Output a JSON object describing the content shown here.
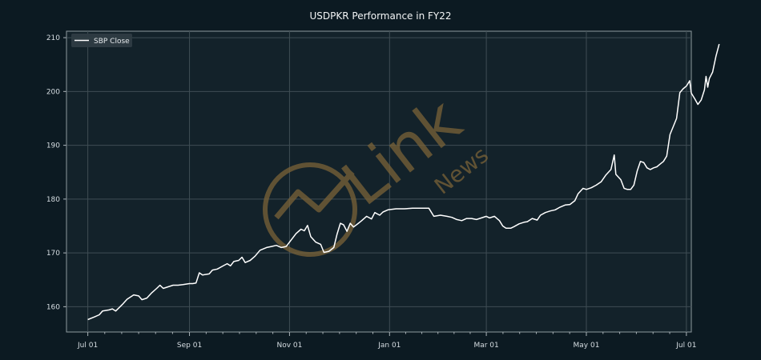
{
  "chart_data": {
    "type": "line",
    "title": "USDPKR Performance in FY22",
    "xlabel": "",
    "ylabel": "",
    "x_ticks": [
      "Jul 01",
      "Sep 01",
      "Nov 01",
      "Jan 01",
      "Mar 01",
      "May 01",
      "Jul 01"
    ],
    "x_tick_dates": [
      "2021-07-01",
      "2021-09-01",
      "2021-11-01",
      "2022-01-01",
      "2022-03-01",
      "2022-05-01",
      "2022-07-01"
    ],
    "y_ticks": [
      160,
      170,
      180,
      190,
      200,
      210
    ],
    "xlim": [
      "2021-06-18",
      "2022-07-04"
    ],
    "ylim": [
      155.3,
      211.2
    ],
    "grid": true,
    "legend_position": "top-left",
    "series": [
      {
        "name": "SBP Close",
        "color": "#ffffff",
        "points": [
          [
            "2021-07-01",
            157.6
          ],
          [
            "2021-07-05",
            158.1
          ],
          [
            "2021-07-08",
            158.5
          ],
          [
            "2021-07-10",
            159.2
          ],
          [
            "2021-07-14",
            159.4
          ],
          [
            "2021-07-16",
            159.6
          ],
          [
            "2021-07-18",
            159.2
          ],
          [
            "2021-07-22",
            160.4
          ],
          [
            "2021-07-25",
            161.4
          ],
          [
            "2021-07-29",
            162.2
          ],
          [
            "2021-08-01",
            162.0
          ],
          [
            "2021-08-03",
            161.3
          ],
          [
            "2021-08-06",
            161.6
          ],
          [
            "2021-08-09",
            162.6
          ],
          [
            "2021-08-12",
            163.4
          ],
          [
            "2021-08-14",
            164.0
          ],
          [
            "2021-08-16",
            163.4
          ],
          [
            "2021-08-19",
            163.7
          ],
          [
            "2021-08-22",
            164.0
          ],
          [
            "2021-08-25",
            164.0
          ],
          [
            "2021-08-28",
            164.1
          ],
          [
            "2021-09-01",
            164.3
          ],
          [
            "2021-09-03",
            164.3
          ],
          [
            "2021-09-05",
            164.4
          ],
          [
            "2021-09-07",
            166.3
          ],
          [
            "2021-09-09",
            165.9
          ],
          [
            "2021-09-13",
            166.1
          ],
          [
            "2021-09-15",
            166.8
          ],
          [
            "2021-09-18",
            167.0
          ],
          [
            "2021-09-21",
            167.5
          ],
          [
            "2021-09-24",
            168.0
          ],
          [
            "2021-09-26",
            167.6
          ],
          [
            "2021-09-28",
            168.4
          ],
          [
            "2021-10-01",
            168.6
          ],
          [
            "2021-10-03",
            169.2
          ],
          [
            "2021-10-05",
            168.2
          ],
          [
            "2021-10-08",
            168.6
          ],
          [
            "2021-10-11",
            169.4
          ],
          [
            "2021-10-14",
            170.5
          ],
          [
            "2021-10-18",
            171.0
          ],
          [
            "2021-10-21",
            171.2
          ],
          [
            "2021-10-24",
            171.4
          ],
          [
            "2021-10-27",
            171.0
          ],
          [
            "2021-10-30",
            171.2
          ],
          [
            "2021-11-01",
            172.0
          ],
          [
            "2021-11-03",
            172.8
          ],
          [
            "2021-11-05",
            173.6
          ],
          [
            "2021-11-08",
            174.4
          ],
          [
            "2021-11-10",
            174.1
          ],
          [
            "2021-11-12",
            175.1
          ],
          [
            "2021-11-14",
            173.0
          ],
          [
            "2021-11-17",
            172.0
          ],
          [
            "2021-11-20",
            171.6
          ],
          [
            "2021-11-22",
            170.1
          ],
          [
            "2021-11-25",
            170.3
          ],
          [
            "2021-11-28",
            171.0
          ],
          [
            "2021-11-30",
            173.5
          ],
          [
            "2021-12-02",
            175.5
          ],
          [
            "2021-12-04",
            175.2
          ],
          [
            "2021-12-06",
            174.0
          ],
          [
            "2021-12-08",
            175.5
          ],
          [
            "2021-12-10",
            174.8
          ],
          [
            "2021-12-13",
            175.5
          ],
          [
            "2021-12-15",
            176.0
          ],
          [
            "2021-12-18",
            176.8
          ],
          [
            "2021-12-21",
            176.3
          ],
          [
            "2021-12-23",
            177.5
          ],
          [
            "2021-12-26",
            177.0
          ],
          [
            "2021-12-28",
            177.6
          ],
          [
            "2021-12-31",
            178.0
          ],
          [
            "2022-01-05",
            178.2
          ],
          [
            "2022-01-10",
            178.2
          ],
          [
            "2022-01-15",
            178.3
          ],
          [
            "2022-01-20",
            178.3
          ],
          [
            "2022-01-25",
            178.3
          ],
          [
            "2022-01-28",
            176.8
          ],
          [
            "2022-02-01",
            177.0
          ],
          [
            "2022-02-05",
            176.8
          ],
          [
            "2022-02-08",
            176.6
          ],
          [
            "2022-02-11",
            176.2
          ],
          [
            "2022-02-14",
            176.0
          ],
          [
            "2022-02-17",
            176.4
          ],
          [
            "2022-02-20",
            176.4
          ],
          [
            "2022-02-23",
            176.2
          ],
          [
            "2022-02-26",
            176.5
          ],
          [
            "2022-03-01",
            176.8
          ],
          [
            "2022-03-03",
            176.5
          ],
          [
            "2022-03-06",
            176.8
          ],
          [
            "2022-03-09",
            176.0
          ],
          [
            "2022-03-11",
            175.0
          ],
          [
            "2022-03-13",
            174.6
          ],
          [
            "2022-03-16",
            174.6
          ],
          [
            "2022-03-18",
            174.9
          ],
          [
            "2022-03-21",
            175.4
          ],
          [
            "2022-03-24",
            175.7
          ],
          [
            "2022-03-26",
            175.8
          ],
          [
            "2022-03-29",
            176.4
          ],
          [
            "2022-04-01",
            176.1
          ],
          [
            "2022-04-03",
            177.0
          ],
          [
            "2022-04-06",
            177.5
          ],
          [
            "2022-04-09",
            177.8
          ],
          [
            "2022-04-12",
            178.0
          ],
          [
            "2022-04-15",
            178.5
          ],
          [
            "2022-04-18",
            178.9
          ],
          [
            "2022-04-21",
            179.0
          ],
          [
            "2022-04-24",
            179.7
          ],
          [
            "2022-04-26",
            181.0
          ],
          [
            "2022-04-29",
            182.0
          ],
          [
            "2022-05-01",
            181.8
          ],
          [
            "2022-05-04",
            182.1
          ],
          [
            "2022-05-07",
            182.6
          ],
          [
            "2022-05-10",
            183.2
          ],
          [
            "2022-05-13",
            184.5
          ],
          [
            "2022-05-16",
            185.5
          ],
          [
            "2022-05-18",
            188.2
          ],
          [
            "2022-05-19",
            184.6
          ],
          [
            "2022-05-22",
            183.6
          ],
          [
            "2022-05-24",
            182.0
          ],
          [
            "2022-05-26",
            181.8
          ],
          [
            "2022-05-28",
            181.8
          ],
          [
            "2022-05-30",
            182.6
          ],
          [
            "2022-06-01",
            185.2
          ],
          [
            "2022-06-03",
            187.0
          ],
          [
            "2022-06-05",
            186.8
          ],
          [
            "2022-06-07",
            185.8
          ],
          [
            "2022-06-09",
            185.5
          ],
          [
            "2022-06-11",
            185.8
          ],
          [
            "2022-06-13",
            186.0
          ],
          [
            "2022-06-15",
            186.5
          ],
          [
            "2022-06-17",
            187.0
          ],
          [
            "2022-06-19",
            188.0
          ],
          [
            "2022-06-21",
            192.0
          ],
          [
            "2022-06-23",
            193.5
          ],
          [
            "2022-06-25",
            195.0
          ],
          [
            "2022-06-27",
            199.8
          ],
          [
            "2022-06-29",
            200.5
          ],
          [
            "2022-07-01",
            201.0
          ],
          [
            "2022-07-03",
            202.0
          ],
          [
            "2022-07-04",
            199.7
          ],
          [
            "2022-07-06",
            198.7
          ],
          [
            "2022-07-08",
            197.6
          ],
          [
            "2022-07-10",
            198.4
          ],
          [
            "2022-07-12",
            200.3
          ],
          [
            "2022-07-13",
            202.8
          ],
          [
            "2022-07-14",
            200.8
          ],
          [
            "2022-07-15",
            202.4
          ],
          [
            "2022-07-17",
            203.6
          ],
          [
            "2022-07-19",
            206.5
          ],
          [
            "2022-07-21",
            208.8
          ]
        ]
      }
    ]
  },
  "watermark": {
    "brand": "Link",
    "sub": "News",
    "color": "#7a6338"
  }
}
